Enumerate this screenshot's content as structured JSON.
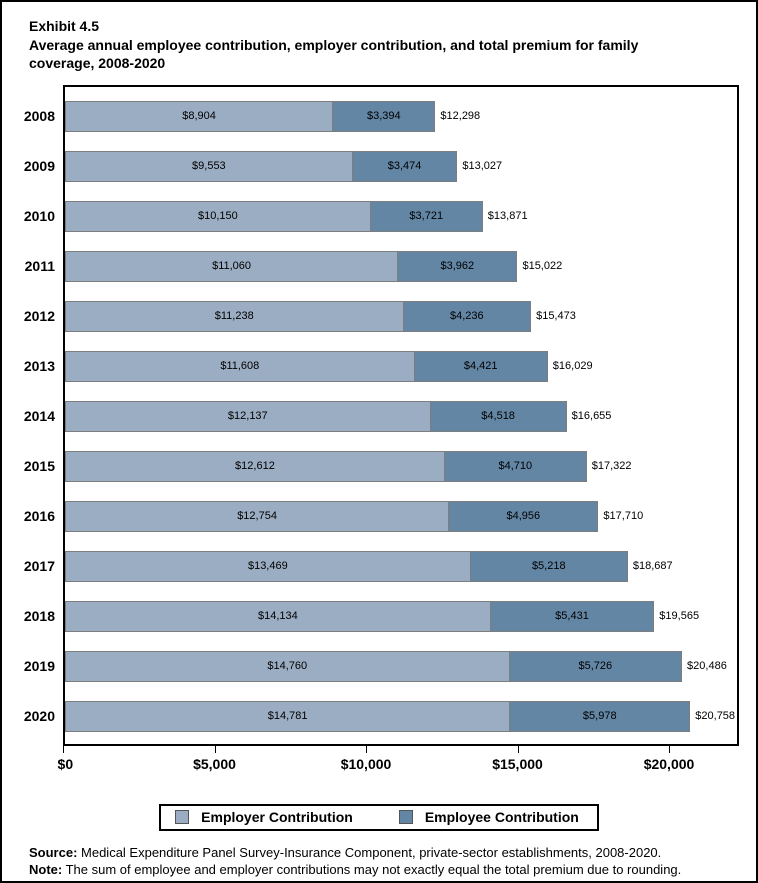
{
  "header": {
    "exhibit_label": "Exhibit 4.5",
    "title": "Average annual employee contribution, employer contribution, and total premium for family coverage, 2008-2020"
  },
  "chart_data": {
    "type": "bar",
    "orientation": "horizontal",
    "stacked": true,
    "title": "Average annual employee contribution, employer contribution, and total premium for family coverage, 2008-2020",
    "categories": [
      "2008",
      "2009",
      "2010",
      "2011",
      "2012",
      "2013",
      "2014",
      "2015",
      "2016",
      "2017",
      "2018",
      "2019",
      "2020"
    ],
    "series": [
      {
        "name": "Employer Contribution",
        "color": "#9badc2",
        "values": [
          8904,
          9553,
          10150,
          11060,
          11238,
          11608,
          12137,
          12612,
          12754,
          13469,
          14134,
          14760,
          14781
        ]
      },
      {
        "name": "Employee Contribution",
        "color": "#6386a5",
        "values": [
          3394,
          3474,
          3721,
          3962,
          4236,
          4421,
          4518,
          4710,
          4956,
          5218,
          5431,
          5726,
          5978
        ]
      }
    ],
    "bars": [
      {
        "year": "2008",
        "employer": 8904,
        "employer_label": "$8,904",
        "employee": 3394,
        "employee_label": "$3,394",
        "total": 12298,
        "total_label": "$12,298"
      },
      {
        "year": "2009",
        "employer": 9553,
        "employer_label": "$9,553",
        "employee": 3474,
        "employee_label": "$3,474",
        "total": 13027,
        "total_label": "$13,027"
      },
      {
        "year": "2010",
        "employer": 10150,
        "employer_label": "$10,150",
        "employee": 3721,
        "employee_label": "$3,721",
        "total": 13871,
        "total_label": "$13,871"
      },
      {
        "year": "2011",
        "employer": 11060,
        "employer_label": "$11,060",
        "employee": 3962,
        "employee_label": "$3,962",
        "total": 15022,
        "total_label": "$15,022"
      },
      {
        "year": "2012",
        "employer": 11238,
        "employer_label": "$11,238",
        "employee": 4236,
        "employee_label": "$4,236",
        "total": 15473,
        "total_label": "$15,473"
      },
      {
        "year": "2013",
        "employer": 11608,
        "employer_label": "$11,608",
        "employee": 4421,
        "employee_label": "$4,421",
        "total": 16029,
        "total_label": "$16,029"
      },
      {
        "year": "2014",
        "employer": 12137,
        "employer_label": "$12,137",
        "employee": 4518,
        "employee_label": "$4,518",
        "total": 16655,
        "total_label": "$16,655"
      },
      {
        "year": "2015",
        "employer": 12612,
        "employer_label": "$12,612",
        "employee": 4710,
        "employee_label": "$4,710",
        "total": 17322,
        "total_label": "$17,322"
      },
      {
        "year": "2016",
        "employer": 12754,
        "employer_label": "$12,754",
        "employee": 4956,
        "employee_label": "$4,956",
        "total": 17710,
        "total_label": "$17,710"
      },
      {
        "year": "2017",
        "employer": 13469,
        "employer_label": "$13,469",
        "employee": 5218,
        "employee_label": "$5,218",
        "total": 18687,
        "total_label": "$18,687"
      },
      {
        "year": "2018",
        "employer": 14134,
        "employer_label": "$14,134",
        "employee": 5431,
        "employee_label": "$5,431",
        "total": 19565,
        "total_label": "$19,565"
      },
      {
        "year": "2019",
        "employer": 14760,
        "employer_label": "$14,760",
        "employee": 5726,
        "employee_label": "$5,726",
        "total": 20486,
        "total_label": "$20,486"
      },
      {
        "year": "2020",
        "employer": 14781,
        "employer_label": "$14,781",
        "employee": 5978,
        "employee_label": "$5,978",
        "total": 20758,
        "total_label": "$20,758"
      }
    ],
    "x_axis": {
      "tick_labels": [
        "$0",
        "$5,000",
        "$10,000",
        "$15,000",
        "$20,000"
      ],
      "tick_values": [
        0,
        5000,
        10000,
        15000,
        20000
      ],
      "xlim": [
        0,
        22310
      ]
    },
    "legend": {
      "position": "bottom",
      "items": [
        {
          "label": "Employer Contribution",
          "color": "#9badc2"
        },
        {
          "label": "Employee Contribution",
          "color": "#6386a5"
        }
      ]
    },
    "grid": false,
    "colors": {
      "employer": "#9badc2",
      "employee": "#6386a5",
      "bar_border": "#7d7d7d",
      "frame": "#000000"
    }
  },
  "footer": {
    "source_label": "Source:",
    "source_text": " Medical Expenditure Panel Survey-Insurance Component, private-sector establishments, 2008-2020.",
    "note_label": "Note:",
    "note_text": " The sum of employee and employer contributions may not exactly equal the total premium due to rounding."
  }
}
